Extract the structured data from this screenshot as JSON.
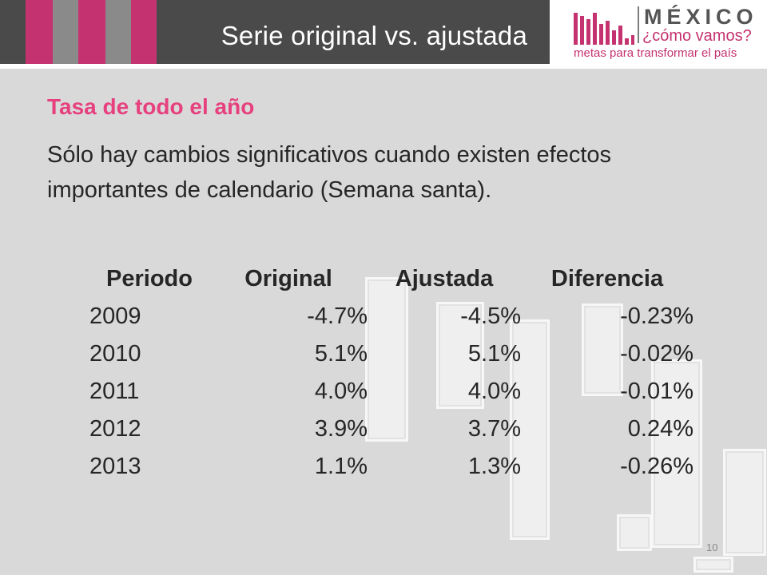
{
  "header": {
    "title": "Serie original vs. ajustada"
  },
  "logo": {
    "word": "MÉXICO",
    "tagline": "¿cómo vamos?",
    "subtitle": "metas para transformar el país",
    "brand_color": "#c4326f"
  },
  "content": {
    "subtitle": "Tasa de todo el año",
    "description": "Sólo hay cambios significativos cuando existen efectos importantes de calendario (Semana santa)."
  },
  "table": {
    "headers": [
      "Periodo",
      "Original",
      "Ajustada",
      "Diferencia"
    ],
    "rows": [
      [
        "2009",
        "-4.7%",
        "-4.5%",
        "-0.23%"
      ],
      [
        "2010",
        "5.1%",
        "5.1%",
        "-0.02%"
      ],
      [
        "2011",
        "4.0%",
        "4.0%",
        "-0.01%"
      ],
      [
        "2012",
        "3.9%",
        "3.7%",
        "0.24%"
      ],
      [
        "2013",
        "1.1%",
        "1.3%",
        "-0.26%"
      ]
    ]
  },
  "footer": {
    "page_number": "10"
  },
  "colors": {
    "accent": "#e6417e",
    "header_bg": "#4a4a4a",
    "background": "#d9d9d9"
  }
}
